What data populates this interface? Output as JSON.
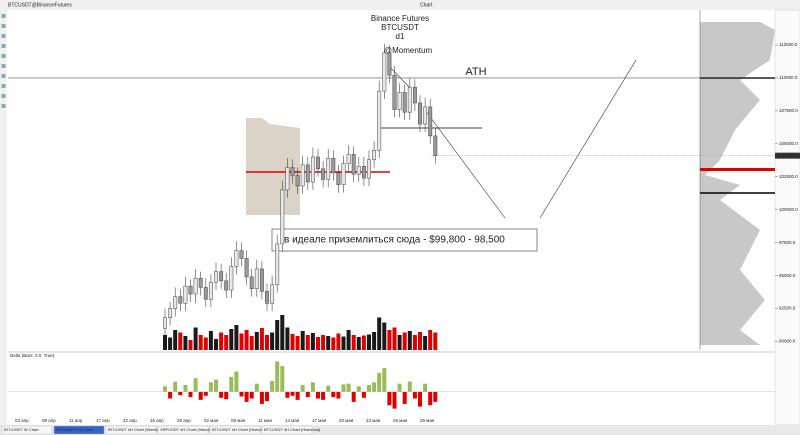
{
  "window": {
    "title": "BTCUSDT@BinanceFutures",
    "chart_label": "Chart"
  },
  "chart_data": {
    "type": "candlestick",
    "title": "Binance Futures",
    "symbol": "BTCUSDT",
    "timeframe": "d1",
    "indicator_label": "@Momentum",
    "ath_label": "ATH",
    "annotation": "в идеале приземлиться сюда - $99,800 - 98,500",
    "ylim": [
      89350,
      114550
    ],
    "yticks": [
      {
        "value": 90000,
        "label": "90000.0"
      },
      {
        "value": 92500,
        "label": "92500.0"
      },
      {
        "value": 95000,
        "label": "95000.0"
      },
      {
        "value": 97500,
        "label": "97500.0"
      },
      {
        "value": 100000,
        "label": "100000.0"
      },
      {
        "value": 102500,
        "label": "102500.0"
      },
      {
        "value": 105000,
        "label": "105000.0"
      },
      {
        "value": 107500,
        "label": "107500.0"
      },
      {
        "value": 110000,
        "label": "110000.0"
      },
      {
        "value": 112500,
        "label": "112500.0"
      }
    ],
    "last_price": {
      "value": 104100,
      "label": "104100.0"
    },
    "ath_level": 110000,
    "dates": [
      "03 апр",
      "08 апр",
      "11 апр",
      "17 апр",
      "22 апр",
      "25 апр",
      "29 апр",
      "02 мая",
      "08 мая",
      "11 мая",
      "14 мая",
      "17 мая",
      "20 мая",
      "23 мая",
      "26 мая",
      "29 мая"
    ],
    "up_color": "#e8e8e8",
    "down_color": "#9a9a9a",
    "open": [
      91000,
      91800,
      92500,
      93400,
      92900,
      94200,
      93600,
      94800,
      94100,
      93200,
      94500,
      95300,
      94600,
      93900,
      95700,
      96900,
      96300,
      94900,
      94000,
      95500,
      93800,
      92900,
      94300,
      97400,
      101500,
      103200,
      102600,
      101800,
      103400,
      102100,
      104000,
      103100,
      102300,
      103900,
      102800,
      101900,
      103500,
      104200,
      102700,
      103300,
      102400,
      103800,
      104500,
      109000,
      111900,
      110200,
      107600,
      108900,
      107400,
      109300,
      108100,
      106500,
      107800,
      105600
    ],
    "high": [
      92500,
      93000,
      94100,
      94000,
      94900,
      94700,
      95500,
      95300,
      94800,
      95100,
      96000,
      95900,
      95200,
      96400,
      97600,
      97500,
      96900,
      95500,
      96200,
      96100,
      94400,
      95000,
      98100,
      102200,
      103900,
      103800,
      103200,
      104100,
      104000,
      104700,
      104600,
      103700,
      104600,
      104500,
      103400,
      104100,
      104900,
      104800,
      104000,
      104000,
      104500,
      105200,
      109800,
      112600,
      112500,
      110900,
      109600,
      109500,
      110000,
      109900,
      108700,
      108500,
      108400,
      106200
    ],
    "low": [
      90300,
      91200,
      91900,
      92300,
      92300,
      93000,
      92900,
      93500,
      92600,
      92600,
      93900,
      94000,
      93300,
      93300,
      95100,
      95700,
      94300,
      93400,
      93400,
      93200,
      92300,
      92300,
      93700,
      96800,
      100900,
      102000,
      101200,
      101200,
      101500,
      101500,
      102500,
      101700,
      101700,
      102200,
      101300,
      101300,
      102900,
      102100,
      102100,
      101800,
      101800,
      103200,
      103900,
      108400,
      109600,
      107000,
      107000,
      106800,
      106800,
      107500,
      105900,
      105900,
      105000,
      103500
    ],
    "close": [
      91800,
      92500,
      93400,
      92900,
      94200,
      93600,
      94800,
      94100,
      93200,
      94500,
      95300,
      94600,
      93900,
      95700,
      96900,
      96300,
      94900,
      94000,
      95500,
      93800,
      92900,
      94300,
      97400,
      101500,
      103200,
      102600,
      101800,
      103400,
      102100,
      104000,
      103100,
      102300,
      103900,
      102800,
      101900,
      103500,
      104200,
      102700,
      103300,
      102400,
      103800,
      104500,
      109000,
      111900,
      110200,
      107600,
      108900,
      107400,
      109300,
      108100,
      106500,
      107800,
      105600,
      104100
    ],
    "volume": [
      30,
      25,
      40,
      35,
      28,
      20,
      45,
      30,
      25,
      38,
      22,
      35,
      30,
      42,
      50,
      33,
      40,
      28,
      36,
      44,
      30,
      35,
      60,
      70,
      45,
      32,
      28,
      38,
      30,
      34,
      26,
      30,
      28,
      25,
      33,
      27,
      40,
      30,
      26,
      29,
      31,
      36,
      65,
      55,
      40,
      45,
      30,
      35,
      38,
      30,
      36,
      28,
      40,
      35
    ],
    "volume_ylim": [
      0,
      100
    ],
    "volume_up_color": "#1a1a1a",
    "volume_down_color": "#e00000",
    "delta_title": "Delta (Bars: 0.0, True)",
    "delta": [
      8,
      -10,
      15,
      -5,
      10,
      -8,
      20,
      -12,
      -6,
      14,
      18,
      -9,
      -11,
      22,
      30,
      -7,
      -15,
      -10,
      12,
      -18,
      -14,
      16,
      45,
      38,
      -9,
      -6,
      -12,
      10,
      -8,
      14,
      -10,
      -12,
      9,
      -8,
      -10,
      11,
      12,
      -15,
      8,
      -9,
      10,
      14,
      28,
      35,
      -20,
      -25,
      12,
      -18,
      15,
      -10,
      -22,
      12,
      -20,
      -15
    ],
    "delta_ylim": [
      -30,
      50
    ],
    "delta_pos_color": "#9bbb59",
    "delta_neg_color": "#e00000"
  },
  "tabs": [
    "BTCUSDT W Chart",
    "BTCUSDT H 1 Chart",
    "BTCUSDT 4H Chart (Weekly)",
    "XRPUSDT 4H Chart (Historical)",
    "BTCUSDT 4H Chart (Historical)",
    "BTCUSDT 4H Chart (Historical)"
  ]
}
